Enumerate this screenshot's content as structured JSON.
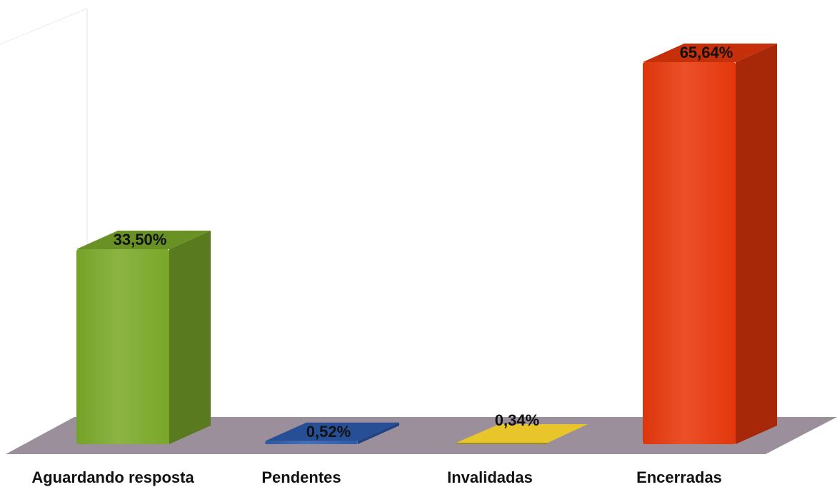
{
  "chart_data": {
    "type": "bar",
    "style": "3d",
    "title": "",
    "xlabel": "",
    "ylabel": "",
    "ylim": [
      0,
      70
    ],
    "grid": false,
    "legend": "none",
    "categories": [
      "Aguardando resposta",
      "Pendentes",
      "Invalidadas",
      "Encerradas"
    ],
    "values": [
      33.5,
      0.52,
      0.34,
      65.64
    ],
    "value_labels": [
      "33,50%",
      "0,52%",
      "0,34%",
      "65,64%"
    ],
    "colors": [
      "#7BAA2A",
      "#2E5DB0",
      "#E8C52A",
      "#E8380C"
    ],
    "floor_color": "#9B8F9C"
  }
}
